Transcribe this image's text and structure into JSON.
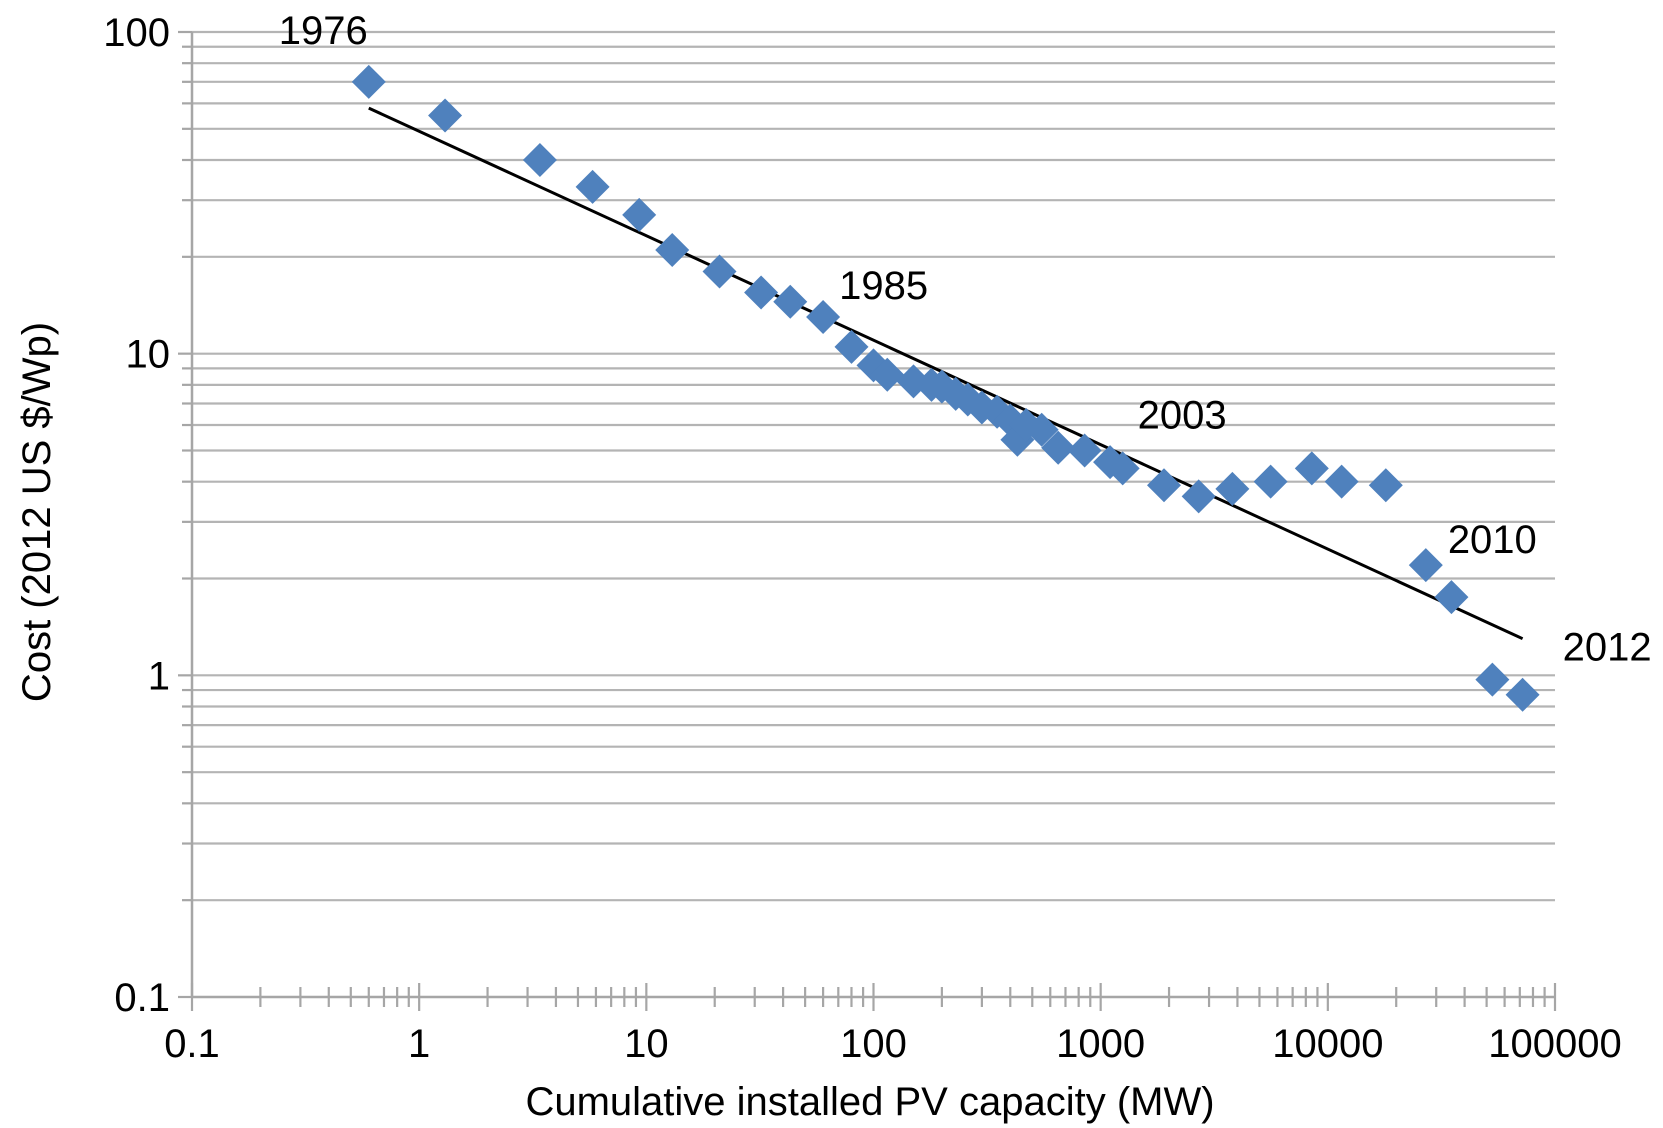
{
  "chart_data": {
    "type": "scatter",
    "title": "",
    "xlabel": "Cumulative installed PV capacity (MW)",
    "ylabel": "Cost (2012 US $/Wp)",
    "x_scale": "log",
    "y_scale": "log",
    "xlim": [
      0.1,
      100000
    ],
    "ylim": [
      0.1,
      100
    ],
    "x_ticks": [
      "0.1",
      "1",
      "10",
      "100",
      "1000",
      "10000",
      "100000"
    ],
    "y_ticks": [
      "0.1",
      "1",
      "10",
      "100"
    ],
    "grid": "horizontal major and minor",
    "legend": "none",
    "marker_color": "#4F81BD",
    "trend_color": "#000000",
    "series": [
      {
        "marker": "diamond",
        "x": [
          0.6,
          1.3,
          3.4,
          5.8,
          9.3,
          13,
          21,
          32,
          43,
          60,
          80,
          100,
          115,
          150,
          180,
          200,
          230,
          260,
          300,
          350,
          400,
          430,
          470,
          550,
          650,
          850,
          1100,
          1250,
          1900,
          2700,
          3800,
          5600,
          8500,
          11500,
          18000,
          27000,
          35000,
          53000,
          72000
        ],
        "y": [
          70,
          55,
          40,
          33,
          27,
          21,
          18,
          15.5,
          14.5,
          13,
          10.5,
          9.2,
          8.6,
          8.2,
          8.0,
          7.9,
          7.5,
          7.2,
          6.8,
          6.6,
          6.2,
          5.4,
          6.0,
          5.8,
          5.1,
          5.0,
          4.6,
          4.4,
          3.9,
          3.6,
          3.8,
          4.0,
          4.4,
          4.0,
          3.9,
          2.2,
          1.75,
          0.97,
          0.87
        ]
      }
    ],
    "trendline": {
      "x": [
        0.6,
        72000
      ],
      "y": [
        58,
        1.3
      ]
    },
    "annotations": [
      {
        "text": "1976",
        "x": 0.6,
        "y": 70
      },
      {
        "text": "1985",
        "x": 60,
        "y": 13
      },
      {
        "text": "2003",
        "x": 1250,
        "y": 4.4
      },
      {
        "text": "2010",
        "x": 27000,
        "y": 2.2
      },
      {
        "text": "2012",
        "x": 72000,
        "y": 1.3
      }
    ]
  }
}
